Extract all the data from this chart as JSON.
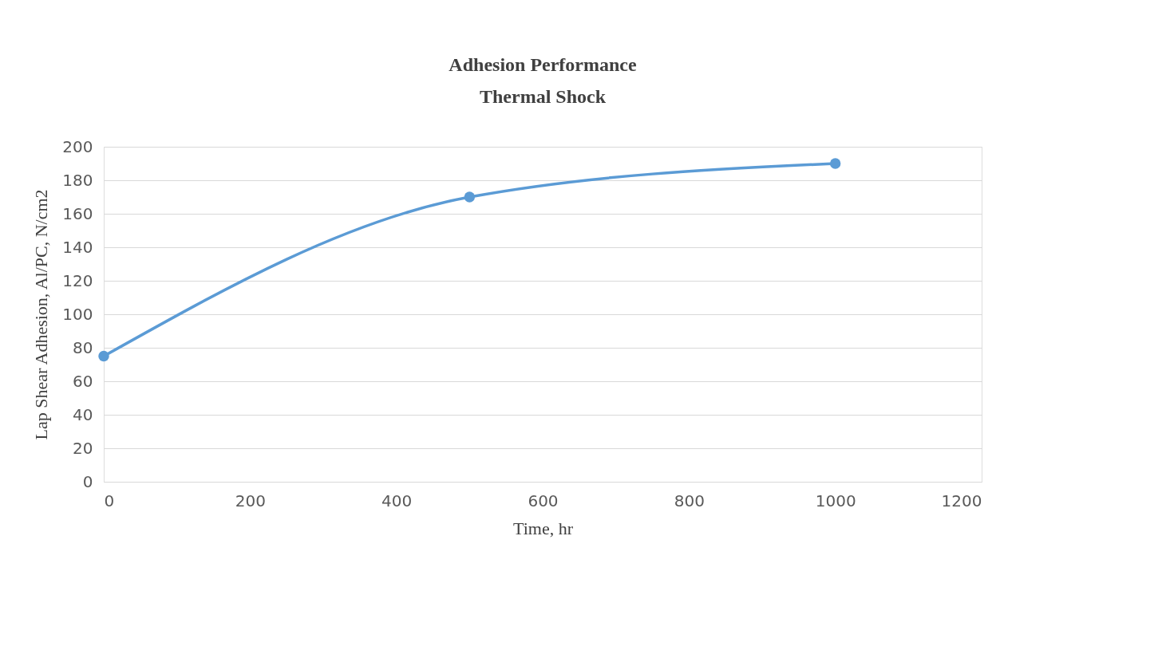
{
  "chart_data": {
    "type": "line",
    "title": "Adhesion Performance\nThermal Shock",
    "xlabel": "Time, hr",
    "ylabel": "Lap Shear Adhesion, Al/PC, N/cm2",
    "x": [
      0,
      500,
      1000
    ],
    "series": [
      {
        "color": "#5b9bd5",
        "values": [
          75,
          170,
          190
        ]
      }
    ],
    "xlim": [
      0,
      1200
    ],
    "xticks": [
      0,
      200,
      400,
      600,
      800,
      1000,
      1200
    ],
    "ylim": [
      0,
      200
    ],
    "yticks": [
      0,
      20,
      40,
      60,
      80,
      100,
      120,
      140,
      160,
      180,
      200
    ],
    "grid": "y",
    "marker": "circle",
    "legend": false
  }
}
